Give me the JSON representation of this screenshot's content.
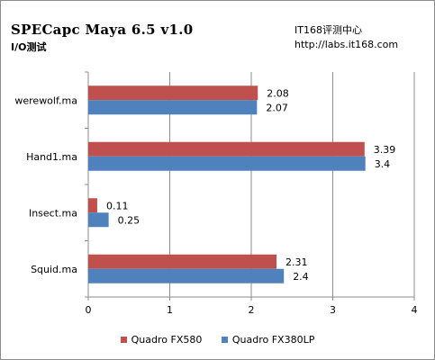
{
  "header": {
    "title": "SPECapc Maya 6.5 v1.0",
    "subtitle": "I/O测试",
    "site_name": "IT168评测中心",
    "site_url": "http://labs.it168.com"
  },
  "chart_data": {
    "type": "bar",
    "orientation": "horizontal",
    "categories": [
      "werewolf.ma",
      "Hand1.ma",
      "Insect.ma",
      "Squid.ma"
    ],
    "series": [
      {
        "name": "Quadro FX580",
        "color": "#c0504d",
        "values": [
          2.08,
          3.39,
          0.11,
          2.31
        ]
      },
      {
        "name": "Quadro FX380LP",
        "color": "#4f81bd",
        "values": [
          2.07,
          3.4,
          0.25,
          2.4
        ]
      }
    ],
    "xlim": [
      0,
      4
    ],
    "xticks": [
      0,
      1,
      2,
      3,
      4
    ],
    "grid": true,
    "legend_position": "bottom"
  }
}
